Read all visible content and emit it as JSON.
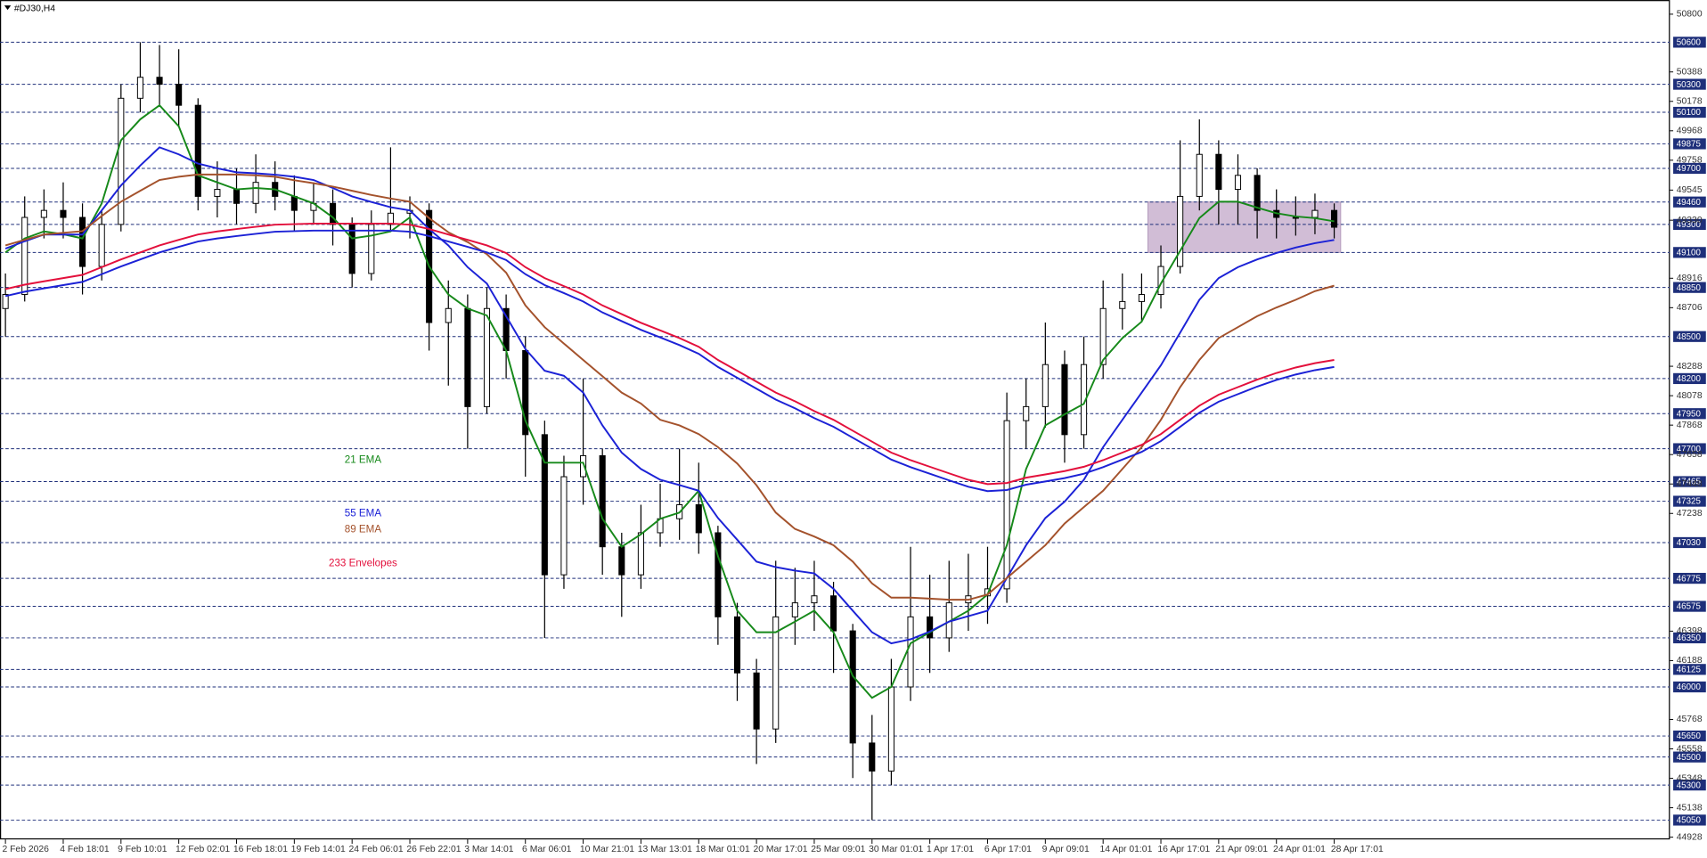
{
  "chart_data": {
    "type": "candlestick",
    "title": "#DJ30,H4",
    "categories": [
      "2 Feb 2026",
      null,
      null,
      "4 Feb 18:01",
      null,
      null,
      "9 Feb 10:01",
      null,
      null,
      "12 Feb 02:01",
      null,
      null,
      "16 Feb 18:01",
      null,
      null,
      "19 Feb 14:01",
      null,
      null,
      "24 Feb 06:01",
      null,
      null,
      "26 Feb 22:01",
      null,
      null,
      "3 Mar 14:01",
      null,
      null,
      "6 Mar 06:01",
      null,
      null,
      "10 Mar 21:01",
      null,
      null,
      "13 Mar 13:01",
      null,
      null,
      "18 Mar 01:01",
      null,
      null,
      "20 Mar 17:01",
      null,
      null,
      "25 Mar 09:01",
      null,
      null,
      "30 Mar 01:01",
      null,
      null,
      "1 Apr 17:01",
      null,
      null,
      "6 Apr 17:01",
      null,
      null,
      "9 Apr 09:01",
      null,
      null,
      "14 Apr 01:01",
      null,
      null,
      "16 Apr 17:01",
      null,
      null,
      "21 Apr 09:01",
      null,
      null,
      "24 Apr 01:01",
      null,
      null,
      "28 Apr 17:01"
    ],
    "open": [
      48700,
      48800,
      49350,
      49400,
      49350,
      49000,
      49300,
      50200,
      50350,
      50300,
      50150,
      49500,
      49550,
      49450,
      49600,
      49500,
      49400,
      49450,
      49300,
      48950,
      49300,
      49380,
      49400,
      48600,
      48700,
      48000,
      48700,
      48400,
      47800,
      46800,
      47500,
      47650,
      47000,
      46800,
      47100,
      47200,
      47300,
      47100,
      46500,
      46100,
      45700,
      46500,
      46600,
      46650,
      46400,
      45600,
      45400,
      46000,
      46500,
      46350,
      46600,
      46650,
      46700,
      47900,
      48000,
      48300,
      47800,
      48300,
      48700,
      48750,
      48800,
      49000,
      49500,
      49800,
      49550,
      49650,
      49400,
      49350,
      49350,
      49400
    ],
    "high": [
      48950,
      49500,
      49550,
      49600,
      49450,
      49400,
      50300,
      50600,
      50580,
      50550,
      50200,
      49750,
      49700,
      49800,
      49750,
      49650,
      49600,
      49550,
      49350,
      49400,
      49850,
      49500,
      49450,
      48900,
      48800,
      48850,
      48800,
      48500,
      47900,
      47650,
      48200,
      47700,
      47100,
      47300,
      47450,
      47700,
      47600,
      47150,
      46600,
      46200,
      46900,
      46850,
      46900,
      46750,
      46450,
      45800,
      46200,
      47000,
      46800,
      46900,
      46950,
      47000,
      48100,
      48200,
      48600,
      48400,
      48500,
      48900,
      48950,
      48950,
      49150,
      49900,
      50050,
      49900,
      49800,
      49700,
      49550,
      49500,
      49520,
      49450
    ],
    "low": [
      48500,
      48750,
      49200,
      49200,
      48800,
      48900,
      49250,
      50100,
      50150,
      50000,
      49400,
      49350,
      49300,
      49380,
      49400,
      49250,
      49300,
      49150,
      48850,
      48900,
      49250,
      49200,
      48400,
      48150,
      47700,
      47950,
      48200,
      47500,
      46350,
      46700,
      47300,
      46800,
      46500,
      46700,
      47000,
      47050,
      46950,
      46300,
      45900,
      45450,
      45600,
      46300,
      46400,
      46100,
      45350,
      45050,
      45300,
      45900,
      46100,
      46250,
      46400,
      46450,
      46600,
      47700,
      47850,
      47600,
      47700,
      48200,
      48550,
      48600,
      48700,
      48950,
      49400,
      49300,
      49300,
      49200,
      49200,
      49220,
      49230,
      49200
    ],
    "close": [
      48800,
      49350,
      49400,
      49350,
      49000,
      49300,
      50200,
      50350,
      50300,
      50150,
      49500,
      49550,
      49450,
      49600,
      49500,
      49400,
      49450,
      49300,
      48950,
      49300,
      49380,
      49400,
      48600,
      48700,
      48000,
      48700,
      48400,
      47800,
      46800,
      47500,
      47650,
      47000,
      46800,
      47100,
      47200,
      47300,
      47100,
      46500,
      46100,
      45700,
      46500,
      46600,
      46650,
      46400,
      45600,
      45400,
      46000,
      46500,
      46350,
      46600,
      46650,
      46700,
      47900,
      48000,
      48300,
      47800,
      48300,
      48700,
      48750,
      48800,
      49000,
      49500,
      49800,
      49550,
      49650,
      49400,
      49350,
      49350,
      49400,
      49280
    ],
    "series": [
      {
        "name": "21 EMA",
        "color": "#16891a",
        "values": [
          49100,
          49200,
          49250,
          49230,
          49200,
          49450,
          49900,
          50050,
          50150,
          50000,
          49650,
          49600,
          49550,
          49560,
          49550,
          49500,
          49450,
          49350,
          49200,
          49220,
          49250,
          49350,
          49000,
          48800,
          48700,
          48650,
          48400,
          47900,
          47600,
          47600,
          47600,
          47200,
          47000,
          47089,
          47200,
          47244,
          47400,
          46933,
          46544,
          46390,
          46390,
          46466,
          46544,
          46390,
          46078,
          45922,
          46000,
          46311,
          46390,
          46466,
          46544,
          46660,
          47011,
          47555,
          47866,
          47945,
          48020,
          48333,
          48489,
          48606,
          48878,
          49112,
          49345,
          49462,
          49462,
          49420,
          49380,
          49357,
          49345,
          49322
        ]
      },
      {
        "name": "55 EMA",
        "color": "#1c22d6",
        "values": [
          49127,
          49180,
          49228,
          49228,
          49228,
          49400,
          49578,
          49720,
          49850,
          49800,
          49734,
          49700,
          49672,
          49665,
          49655,
          49640,
          49617,
          49560,
          49500,
          49460,
          49423,
          49400,
          49267,
          49150,
          48995,
          48878,
          48645,
          48411,
          48256,
          48220,
          48100,
          47866,
          47672,
          47555,
          47478,
          47440,
          47400,
          47205,
          47050,
          46894,
          46855,
          46830,
          46810,
          46700,
          46544,
          46390,
          46311,
          46340,
          46395,
          46466,
          46505,
          46544,
          46777,
          47011,
          47205,
          47322,
          47478,
          47711,
          47906,
          48100,
          48295,
          48528,
          48762,
          48917,
          48995,
          49050,
          49096,
          49135,
          49166,
          49189
        ]
      },
      {
        "name": "89 EMA",
        "color": "#a4522c",
        "values": [
          49150,
          49190,
          49228,
          49240,
          49252,
          49360,
          49462,
          49540,
          49617,
          49640,
          49656,
          49656,
          49656,
          49650,
          49640,
          49615,
          49594,
          49570,
          49540,
          49510,
          49485,
          49462,
          49345,
          49244,
          49174,
          49088,
          48956,
          48722,
          48567,
          48450,
          48333,
          48217,
          48100,
          48022,
          47906,
          47866,
          47804,
          47711,
          47594,
          47439,
          47244,
          47127,
          47073,
          47011,
          46894,
          46739,
          46637,
          46637,
          46630,
          46622,
          46622,
          46660,
          46777,
          46894,
          47011,
          47166,
          47283,
          47400,
          47555,
          47711,
          47906,
          48139,
          48333,
          48489,
          48567,
          48645,
          48707,
          48762,
          48824,
          48863
        ]
      },
      {
        "name": "233 Envelopes",
        "color": "#e3103c",
        "values": [
          48839,
          48870,
          48894,
          48917,
          48940,
          48995,
          49050,
          49100,
          49150,
          49190,
          49228,
          49250,
          49267,
          49283,
          49298,
          49302,
          49306,
          49306,
          49306,
          49306,
          49306,
          49298,
          49267,
          49228,
          49190,
          49150,
          49096,
          48995,
          48917,
          48860,
          48800,
          48722,
          48660,
          48598,
          48544,
          48489,
          48427,
          48333,
          48256,
          48178,
          48100,
          48038,
          47968,
          47906,
          47828,
          47750,
          47672,
          47618,
          47571,
          47524,
          47478,
          47447,
          47455,
          47493,
          47516,
          47540,
          47571,
          47618,
          47672,
          47727,
          47804,
          47906,
          48007,
          48085,
          48139,
          48193,
          48240,
          48279,
          48310,
          48333
        ],
        "lower_color": "#1c22d6",
        "lower": [
          48789,
          48820,
          48844,
          48867,
          48890,
          48945,
          49000,
          49050,
          49100,
          49140,
          49178,
          49200,
          49217,
          49233,
          49248,
          49252,
          49256,
          49256,
          49256,
          49256,
          49256,
          49248,
          49217,
          49178,
          49140,
          49100,
          49046,
          48945,
          48867,
          48810,
          48750,
          48672,
          48610,
          48548,
          48494,
          48439,
          48377,
          48283,
          48206,
          48128,
          48050,
          47988,
          47918,
          47856,
          47778,
          47700,
          47622,
          47568,
          47521,
          47474,
          47428,
          47397,
          47405,
          47443,
          47466,
          47490,
          47521,
          47568,
          47622,
          47677,
          47754,
          47856,
          47957,
          48035,
          48089,
          48143,
          48190,
          48229,
          48260,
          48283
        ]
      }
    ],
    "ylim": [
      44912,
      50862
    ],
    "yticks": [
      50800,
      50388,
      50178,
      49968,
      49758,
      49545,
      49330,
      48916,
      48706,
      48288,
      48078,
      47868,
      47658,
      47448,
      47238,
      46398,
      46188,
      45768,
      45558,
      45348,
      45138,
      44928
    ],
    "levels": [
      50600,
      50300,
      50100,
      49875,
      49700,
      49460,
      49300,
      49100,
      48850,
      48500,
      48200,
      47950,
      47700,
      47465,
      47325,
      47030,
      46775,
      46575,
      46350,
      46125,
      46000,
      45650,
      45500,
      45300,
      45050
    ],
    "level_color": "#1e2f7a",
    "zone": [
      49100,
      49460
    ],
    "zone_color": "#c9b2cf"
  }
}
